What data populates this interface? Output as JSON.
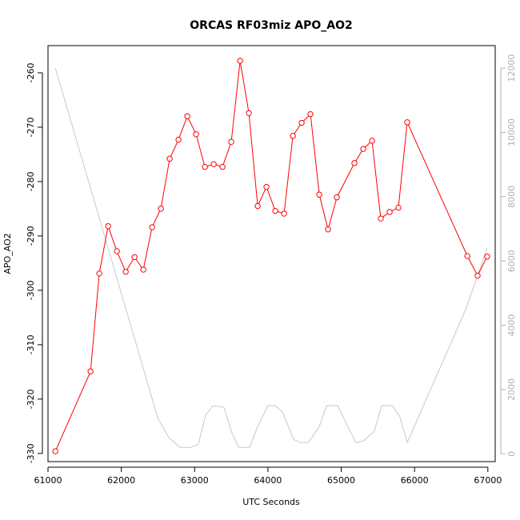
{
  "chart_data": {
    "type": "line",
    "title": "ORCAS RF03miz APO_AO2",
    "xlabel": "UTC Seconds",
    "ylabel": "APO_AO2",
    "xlim": [
      61000,
      67100
    ],
    "ylim": [
      -331.5,
      -255
    ],
    "x_ticks": [
      61000,
      62000,
      63000,
      64000,
      65000,
      66000,
      67000
    ],
    "x_tick_labels": [
      "61000",
      "62000",
      "63000",
      "64000",
      "65000",
      "66000",
      "67000"
    ],
    "y_ticks": [
      -330,
      -320,
      -310,
      -300,
      -290,
      -280,
      -270,
      -260
    ],
    "y_tick_labels": [
      "-330",
      "-320",
      "-310",
      "-300",
      "-290",
      "-280",
      "-270",
      "-260"
    ],
    "y2lim": [
      -240,
      12700
    ],
    "y2_ticks": [
      0,
      2000,
      4000,
      6000,
      8000,
      10000,
      12000
    ],
    "y2_tick_labels": [
      "0",
      "2000",
      "4000",
      "6000",
      "8000",
      "10000",
      "12000"
    ],
    "grid": false,
    "colors": {
      "primary": "#ff0000",
      "secondary": "#c8c8c8",
      "axis": "#000000",
      "right_axis": "#b0b0b0"
    },
    "series": [
      {
        "axis": "left",
        "marker": "open-circle",
        "x": [
          61100,
          61580,
          61700,
          61820,
          61940,
          62060,
          62180,
          62300,
          62420,
          62540,
          62660,
          62780,
          62900,
          63020,
          63140,
          63260,
          63380,
          63500,
          63620,
          63740,
          63860,
          63980,
          64100,
          64220,
          64340,
          64460,
          64580,
          64700,
          64820,
          64940,
          65180,
          65300,
          65420,
          65540,
          65660,
          65780,
          65900,
          66720,
          66860,
          66990
        ],
        "y": [
          -329.6,
          -314.9,
          -296.9,
          -288.2,
          -292.8,
          -296.6,
          -293.9,
          -296.2,
          -288.4,
          -285.0,
          -275.8,
          -272.3,
          -268.0,
          -271.3,
          -277.3,
          -276.8,
          -277.3,
          -272.7,
          -257.8,
          -267.4,
          -284.5,
          -281.0,
          -285.4,
          -285.9,
          -271.6,
          -269.2,
          -267.6,
          -282.4,
          -288.8,
          -282.9,
          -276.6,
          -274.0,
          -272.5,
          -286.8,
          -285.6,
          -284.8,
          -269.1,
          -293.7,
          -297.3,
          -293.8
        ]
      },
      {
        "axis": "right",
        "marker": "none",
        "x": [
          61100,
          62500,
          62650,
          62800,
          62950,
          63050,
          63150,
          63250,
          63400,
          63500,
          63600,
          63750,
          63850,
          64000,
          64100,
          64200,
          64350,
          64450,
          64550,
          64700,
          64800,
          64950,
          65100,
          65200,
          65300,
          65450,
          65550,
          65700,
          65800,
          65900,
          66700,
          66990
        ],
        "y": [
          12000,
          1100,
          500,
          200,
          200,
          300,
          1200,
          1500,
          1450,
          700,
          200,
          200,
          800,
          1500,
          1500,
          1300,
          450,
          350,
          350,
          850,
          1500,
          1500,
          800,
          350,
          400,
          700,
          1500,
          1500,
          1150,
          350,
          4500,
          6400
        ]
      }
    ]
  }
}
